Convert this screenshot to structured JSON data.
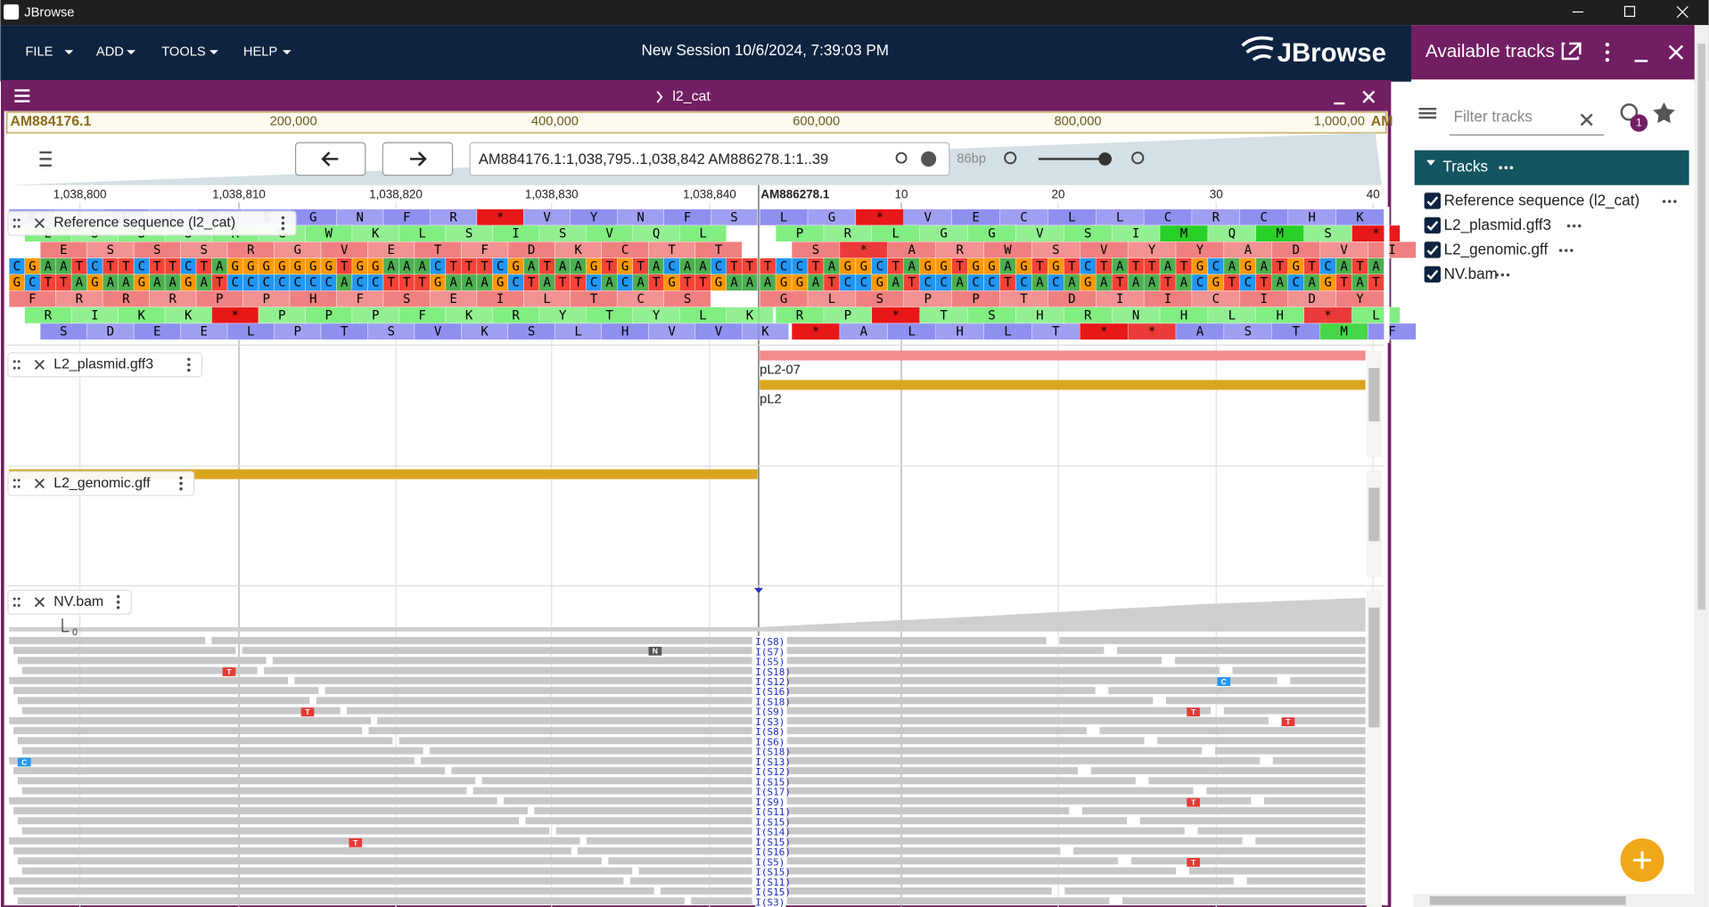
{
  "window": {
    "title": "JBrowse"
  },
  "menu": {
    "items": [
      "FILE",
      "ADD",
      "TOOLS",
      "HELP"
    ],
    "session": "New Session 10/6/2024, 7:39:03 PM",
    "logo": "JBrowse"
  },
  "view": {
    "name": "l2_cat",
    "overview": [
      "AM884176.1",
      "200,000",
      "400,000",
      "600,000",
      "800,000",
      "1,000,00",
      "AM"
    ],
    "location": "AM884176.1:1,038,795..1,038,842 AM886278.1:1..39",
    "bp": "86bp",
    "ruler": [
      "1,038,800",
      "1,038,810",
      "1,038,820",
      "1,038,830",
      "1,038,840",
      "AM886278.1",
      "10",
      "20",
      "30",
      "40"
    ]
  },
  "tracks": [
    {
      "label": "Reference sequence (l2_cat)"
    },
    {
      "label": "L2_plasmid.gff3",
      "features": [
        "pL2-07",
        "pL2"
      ]
    },
    {
      "label": "L2_genomic.gff"
    },
    {
      "label": "NV.bam",
      "coverage_label": "0",
      "mismatches": [
        "T",
        "T",
        "C",
        "N",
        "C",
        "T",
        "T",
        "T",
        "T",
        "T"
      ],
      "insertions": [
        "I(S8)",
        "I(S7)",
        "I(S5)",
        "I(S18)",
        "I(S12)",
        "I(S16)",
        "I(S18)",
        "I(S9)",
        "I(S3)",
        "I(S8)",
        "I(S6)",
        "I(S18)",
        "I(S13)",
        "I(S12)",
        "I(S15)",
        "I(S17)",
        "I(S9)",
        "I(S11)",
        "I(S15)",
        "I(S14)",
        "I(S15)",
        "I(S16)",
        "I(S5)",
        "I(S15)",
        "I(S11)",
        "I(S15)",
        "I(S3)"
      ]
    }
  ],
  "sequence": {
    "left": {
      "frames": [
        "RILLLGGNFR*VYNFS",
        "ESSSRGWKLSISVQL",
        "ESSSRGVETFDKCTT",
        "FRRRPPHFSEILTCS",
        "RIKK*PPPFKRYTYLK",
        "SDEELPTSVKSLHVVK"
      ],
      "forward": "CGAATCTTCTTCTAGGGGGGGTGGAAACTTTCGATAAGTGTACAACTT",
      "reverse": "GCTTAGAAGAAGATCCCCCCCACCTTTGAAAGCTATTCACATGTTGAA"
    },
    "right": {
      "frames": [
        "LG*VECLLCRCHK",
        "PRLGGVSIMQMS*",
        "S*ARWSVYYADVI",
        "GLSPPTDIICIDY",
        "RP*TSHRNHLH*L",
        "*ALHLT**ASTMF"
      ],
      "forward": "TCCTAGGCTAGGTGGAGTGTCTATTATGCAGATGTCATA",
      "reverse": "AGGATCCGATCCACCTCACAGATAATACGTCTACAGTAT"
    }
  },
  "panel": {
    "title": "Available tracks",
    "filter_placeholder": "Filter tracks",
    "history_badge": "1",
    "section": "Tracks",
    "items": [
      "Reference sequence (l2_cat)",
      "L2_plasmid.gff3",
      "L2_genomic.gff",
      "NV.bam"
    ]
  }
}
